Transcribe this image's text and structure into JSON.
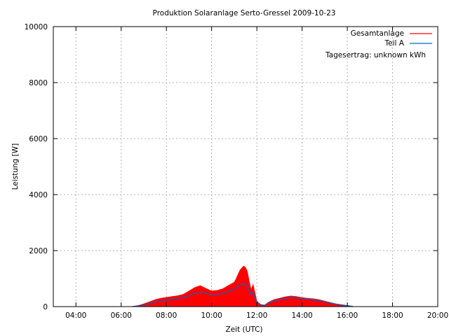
{
  "chart_data": {
    "type": "area",
    "title": "Produktion Solaranlage Serto-Gressel 2009-10-23",
    "xlabel": "Zeit (UTC)",
    "ylabel": "Leistung [W]",
    "xlim": [
      "03:00",
      "20:00"
    ],
    "ylim": [
      0,
      10000
    ],
    "x_ticks": [
      "04:00",
      "06:00",
      "08:00",
      "10:00",
      "12:00",
      "14:00",
      "16:00",
      "18:00",
      "20:00"
    ],
    "y_ticks": [
      0,
      2000,
      4000,
      6000,
      8000,
      10000
    ],
    "grid": true,
    "legend_position": "top-right",
    "annotation": "Tagesertrag: unknown kWh",
    "series": [
      {
        "name": "Gesamtanlage",
        "color": "#ff0000",
        "style": "filled-area",
        "x": [
          "06:30",
          "06:45",
          "07:00",
          "07:15",
          "07:30",
          "07:45",
          "08:00",
          "08:15",
          "08:30",
          "08:45",
          "09:00",
          "09:15",
          "09:30",
          "09:45",
          "10:00",
          "10:15",
          "10:30",
          "10:45",
          "11:00",
          "11:05",
          "11:10",
          "11:15",
          "11:20",
          "11:25",
          "11:30",
          "11:35",
          "11:40",
          "11:45",
          "11:50",
          "11:55",
          "12:00",
          "12:10",
          "12:20",
          "12:30",
          "12:45",
          "13:00",
          "13:15",
          "13:30",
          "13:45",
          "14:00",
          "14:15",
          "14:30",
          "14:45",
          "15:00",
          "15:15",
          "15:30",
          "15:45",
          "16:00",
          "16:15"
        ],
        "y": [
          10,
          40,
          100,
          170,
          250,
          300,
          330,
          360,
          390,
          440,
          560,
          680,
          750,
          650,
          560,
          580,
          640,
          760,
          870,
          1000,
          1150,
          1300,
          1380,
          1450,
          1400,
          1250,
          900,
          600,
          800,
          500,
          200,
          80,
          50,
          150,
          250,
          300,
          350,
          380,
          360,
          320,
          300,
          280,
          250,
          200,
          150,
          100,
          70,
          40,
          10
        ]
      },
      {
        "name": "Teil A",
        "color": "#0066cc",
        "style": "line",
        "x": [
          "06:30",
          "06:45",
          "07:00",
          "07:15",
          "07:30",
          "07:45",
          "08:00",
          "08:15",
          "08:30",
          "08:45",
          "09:00",
          "09:15",
          "09:30",
          "09:45",
          "10:00",
          "10:15",
          "10:30",
          "10:45",
          "11:00",
          "11:05",
          "11:10",
          "11:15",
          "11:20",
          "11:25",
          "11:30",
          "11:35",
          "11:40",
          "11:45",
          "11:50",
          "11:55",
          "12:00",
          "12:10",
          "12:20",
          "12:30",
          "12:45",
          "13:00",
          "13:15",
          "13:30",
          "13:45",
          "14:00",
          "14:15",
          "14:30",
          "14:45",
          "15:00",
          "15:15",
          "15:30",
          "15:45",
          "16:00",
          "16:15"
        ],
        "y": [
          5,
          20,
          60,
          110,
          170,
          200,
          230,
          260,
          300,
          320,
          380,
          470,
          520,
          480,
          420,
          430,
          470,
          540,
          620,
          680,
          720,
          780,
          800,
          820,
          800,
          720,
          560,
          420,
          500,
          330,
          150,
          70,
          50,
          120,
          200,
          240,
          290,
          320,
          310,
          280,
          260,
          240,
          210,
          170,
          130,
          90,
          60,
          35,
          8
        ]
      }
    ]
  }
}
